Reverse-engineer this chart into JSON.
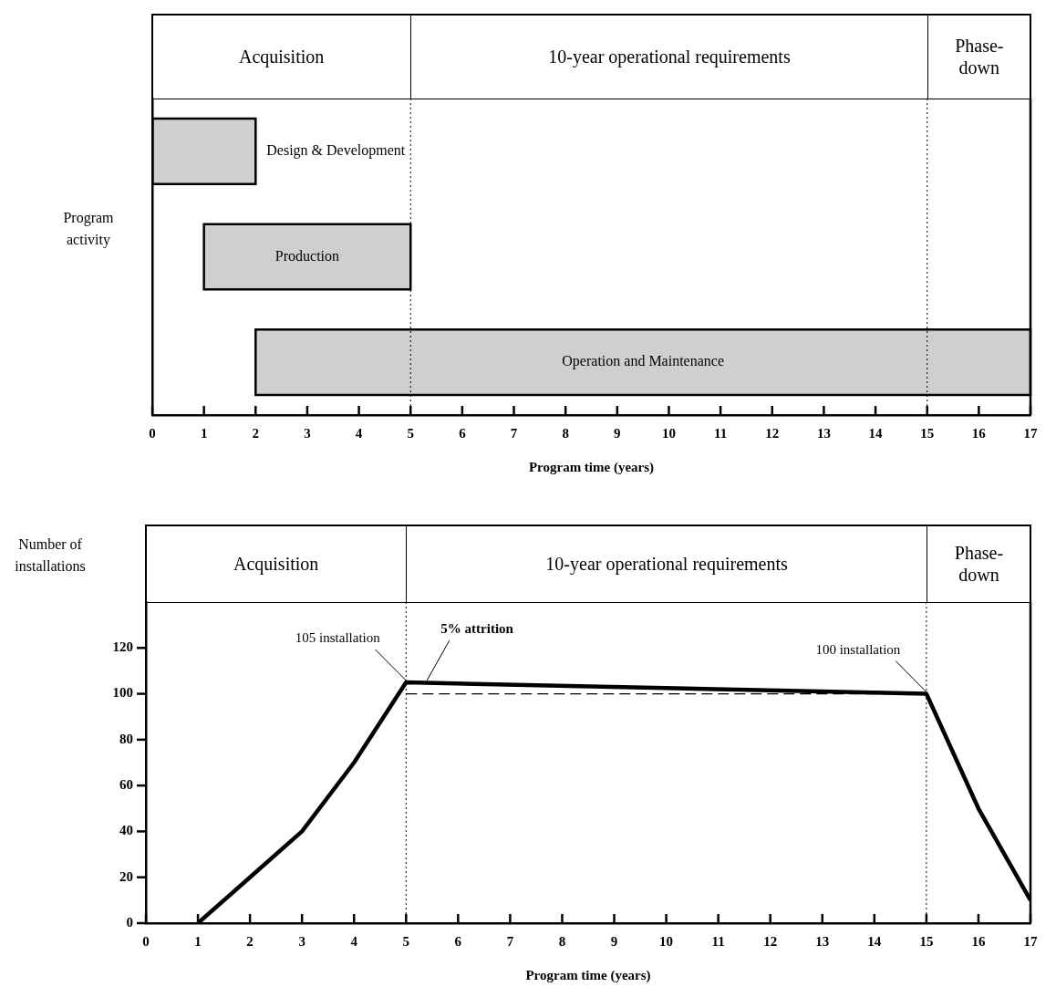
{
  "chart_data": [
    {
      "type": "bar",
      "orientation": "horizontal",
      "ylabel": "Program activity",
      "xlabel": "Program time (years)",
      "categories": [
        "Design & Development",
        "Production",
        "Operation and Maintenance"
      ],
      "base": [
        0,
        1,
        2
      ],
      "values": [
        2,
        4,
        15
      ],
      "color": "#cfcfcf",
      "xlim": [
        0,
        17
      ],
      "xticks": [
        0,
        1,
        2,
        3,
        4,
        5,
        6,
        7,
        8,
        9,
        10,
        11,
        12,
        13,
        14,
        15,
        16,
        17
      ],
      "ref_lines": [
        {
          "axis": "x",
          "value": 5,
          "line_style": "dotted"
        },
        {
          "axis": "x",
          "value": 15,
          "line_style": "dotted"
        }
      ],
      "annotations": [
        "Acquisition",
        "10-year operational requirements",
        "Phase-down"
      ],
      "grid": false,
      "legend": false
    },
    {
      "type": "line",
      "ylabel": "Number of installations",
      "xlabel": "Program time (years)",
      "x": [
        1,
        2,
        3,
        4,
        5,
        15,
        16,
        17
      ],
      "series": [
        {
          "color": "#000000",
          "values": [
            0,
            20,
            40,
            70,
            105,
            100,
            50,
            10
          ],
          "line_style": "solid"
        },
        {
          "color": "#000000",
          "x": [
            5,
            15
          ],
          "values": [
            100,
            100
          ],
          "line_style": "dashed"
        }
      ],
      "xlim": [
        0,
        17
      ],
      "xticks": [
        0,
        1,
        2,
        3,
        4,
        5,
        6,
        7,
        8,
        9,
        10,
        11,
        12,
        13,
        14,
        15,
        16,
        17
      ],
      "ylim": [
        0,
        140
      ],
      "yticks": [
        0,
        20,
        40,
        60,
        80,
        100,
        120
      ],
      "ref_lines": [
        {
          "axis": "x",
          "value": 5,
          "line_style": "dotted"
        },
        {
          "axis": "x",
          "value": 15,
          "line_style": "dotted"
        }
      ],
      "annotations": [
        "Acquisition",
        "10-year operational requirements",
        "Phase-down",
        {
          "text": "105 installation",
          "x": 5,
          "y": 105
        },
        {
          "text": "5% attrition",
          "x": 5.4,
          "y": 105
        },
        {
          "text": "100 installation",
          "x": 15,
          "y": 100
        }
      ],
      "marker": "none",
      "grid": false,
      "legend": false
    }
  ]
}
